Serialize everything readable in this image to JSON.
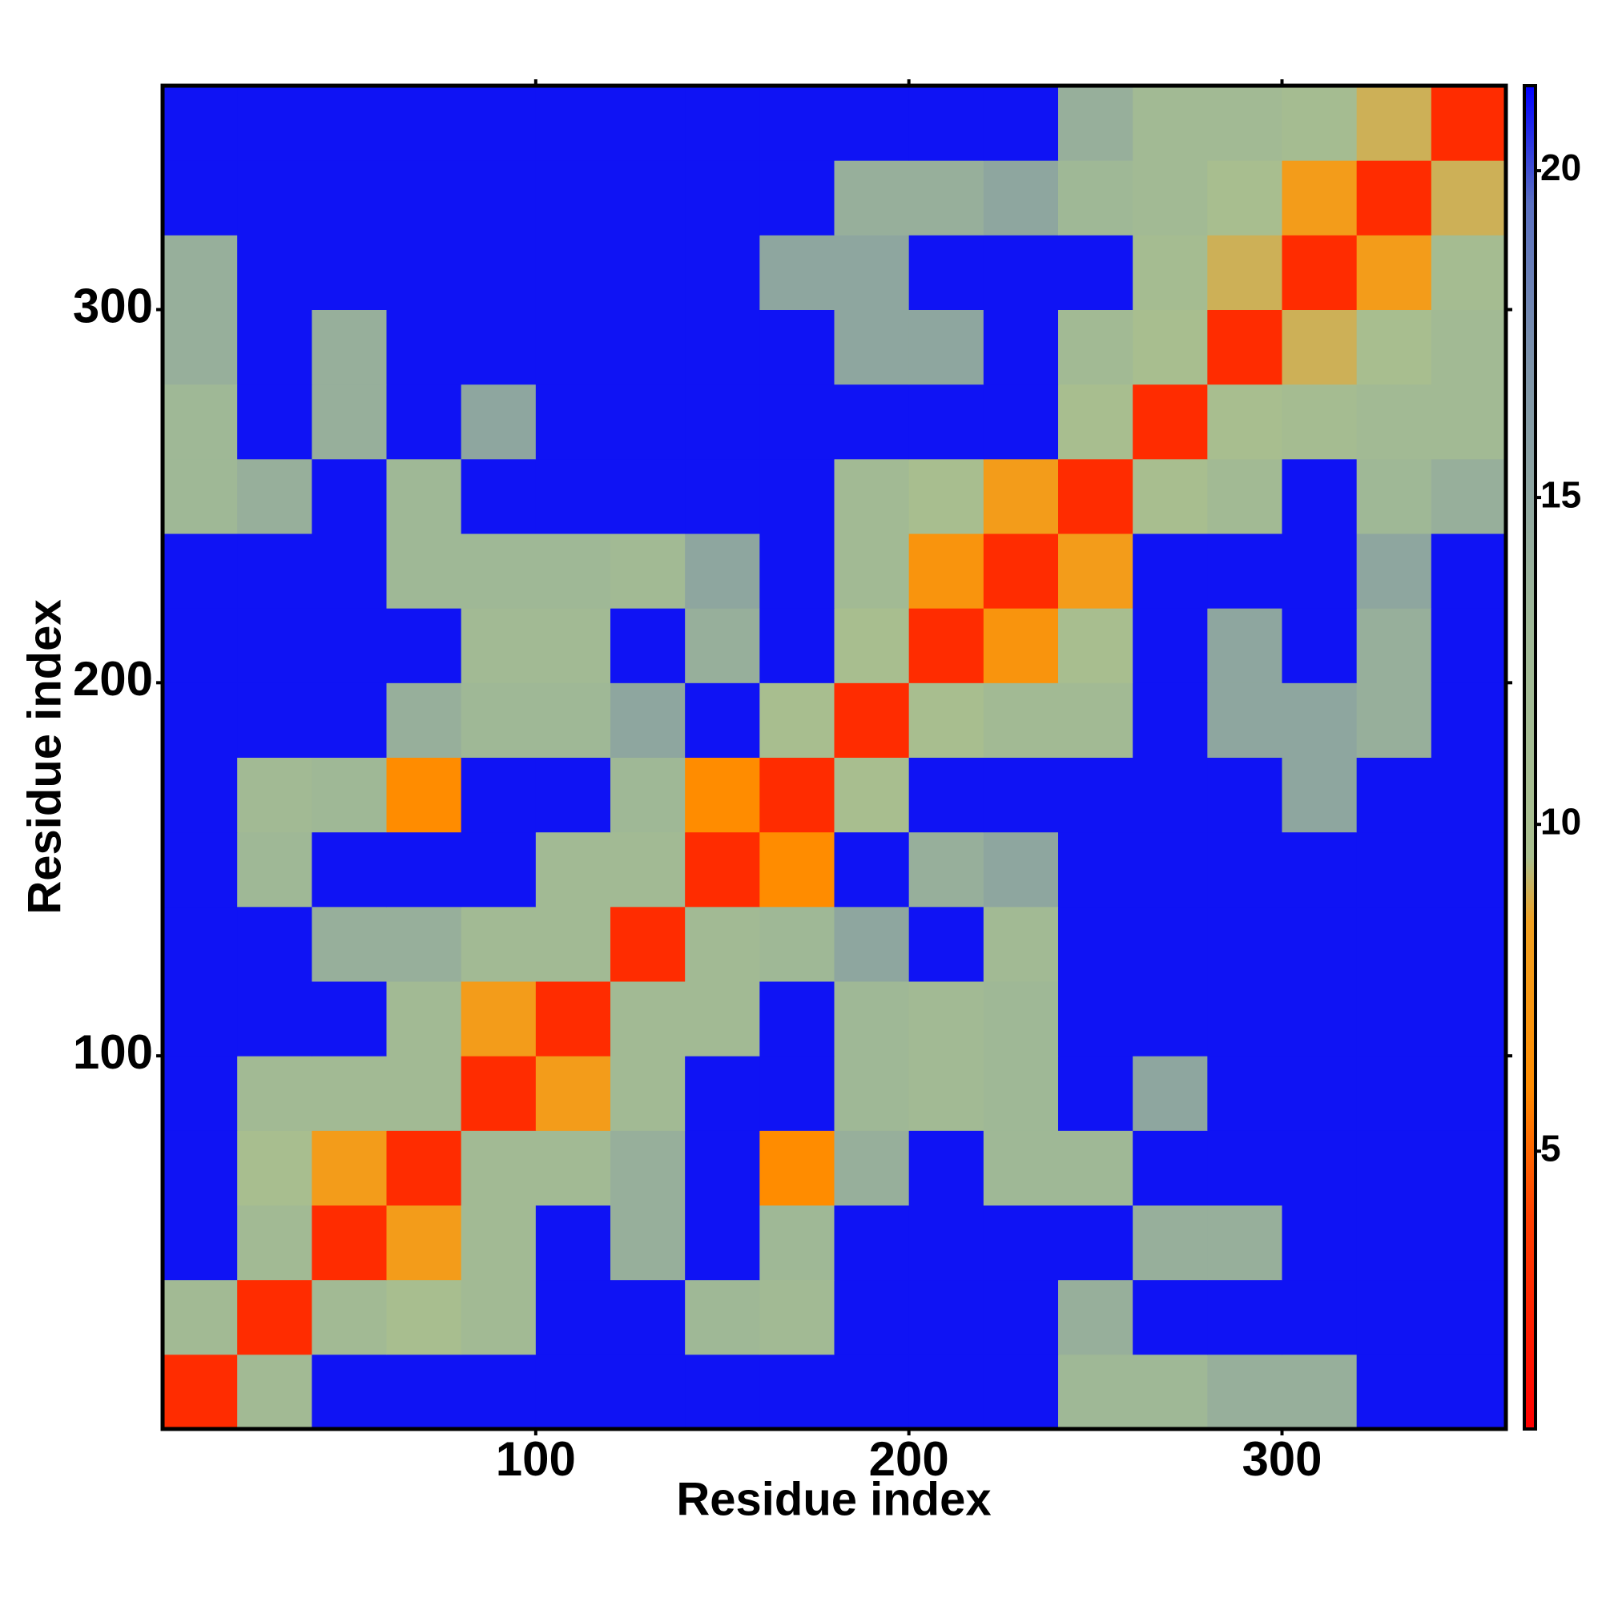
{
  "chart_data": {
    "type": "heatmap",
    "xlabel": "Residue index",
    "ylabel": "Residue index",
    "xlim": [
      0,
      360
    ],
    "ylim": [
      0,
      360
    ],
    "xticks": [
      100,
      200,
      300
    ],
    "yticks": [
      100,
      200,
      300
    ],
    "xbins": [
      0,
      20,
      40,
      60,
      80,
      100,
      120,
      140,
      160,
      180,
      200,
      220,
      240,
      260,
      280,
      300,
      320,
      340,
      360
    ],
    "ybins": [
      0,
      20,
      40,
      60,
      80,
      100,
      120,
      140,
      160,
      180,
      200,
      220,
      240,
      260,
      280,
      300,
      320,
      340,
      360
    ],
    "clim": [
      0.75,
      21.3
    ],
    "cticks": [
      5,
      10,
      15,
      20
    ],
    "colorscale": [
      [
        0.75,
        "#ff0000"
      ],
      [
        4,
        "#ff4000"
      ],
      [
        6,
        "#ff8c00"
      ],
      [
        8.5,
        "#f0a020"
      ],
      [
        9.5,
        "#a9bf8e"
      ],
      [
        13,
        "#9fb896"
      ],
      [
        17,
        "#7d93a8"
      ],
      [
        19.5,
        "#5a6fc0"
      ],
      [
        21.3,
        "#0000ff"
      ]
    ],
    "values": [
      [
        3,
        12,
        21,
        21,
        21,
        21,
        21,
        21,
        21,
        21,
        21,
        21,
        13,
        13,
        14,
        14,
        21,
        21
      ],
      [
        12,
        3,
        12,
        10,
        12,
        21,
        21,
        13,
        12,
        21,
        21,
        21,
        14,
        21,
        21,
        21,
        21,
        21
      ],
      [
        21,
        12,
        3,
        8,
        12,
        21,
        14,
        21,
        13,
        21,
        21,
        21,
        21,
        14,
        14,
        21,
        21,
        21
      ],
      [
        21,
        10,
        8,
        3,
        12,
        12,
        14,
        21,
        6,
        14,
        21,
        13,
        13,
        21,
        21,
        21,
        21,
        21
      ],
      [
        21,
        12,
        12,
        12,
        3,
        8,
        12,
        21,
        21,
        13,
        12,
        13,
        21,
        15,
        21,
        21,
        21,
        21
      ],
      [
        21,
        21,
        21,
        12,
        8,
        3,
        12,
        12,
        21,
        13,
        12,
        13,
        21,
        21,
        21,
        21,
        21,
        21
      ],
      [
        21,
        21,
        14,
        14,
        12,
        12,
        3,
        12,
        13,
        15,
        21,
        12,
        21,
        21,
        21,
        21,
        21,
        21
      ],
      [
        21,
        13,
        21,
        21,
        21,
        12,
        12,
        3,
        6,
        21,
        14,
        15,
        21,
        21,
        21,
        21,
        21,
        21
      ],
      [
        21,
        12,
        13,
        6,
        21,
        21,
        13,
        6,
        3,
        10,
        21,
        21,
        21,
        21,
        21,
        15,
        21,
        21
      ],
      [
        21,
        21,
        21,
        14,
        13,
        13,
        15,
        21,
        10,
        3,
        10,
        12,
        12,
        21,
        15,
        15,
        14,
        21
      ],
      [
        21,
        21,
        21,
        21,
        12,
        12,
        21,
        14,
        21,
        10,
        3,
        7,
        10,
        21,
        15,
        21,
        14,
        21
      ],
      [
        21,
        21,
        21,
        13,
        13,
        13,
        12,
        15,
        21,
        12,
        7,
        3,
        8,
        21,
        21,
        21,
        15,
        21
      ],
      [
        13,
        14,
        21,
        13,
        21,
        21,
        21,
        21,
        21,
        12,
        10,
        8,
        3,
        10,
        12,
        21,
        13,
        14
      ],
      [
        13,
        21,
        14,
        21,
        15,
        21,
        21,
        21,
        21,
        21,
        21,
        21,
        10,
        3,
        10,
        11,
        12,
        12
      ],
      [
        14,
        21,
        14,
        21,
        21,
        21,
        21,
        21,
        21,
        15,
        15,
        21,
        12,
        10,
        3,
        9,
        10,
        12
      ],
      [
        14,
        21,
        21,
        21,
        21,
        21,
        21,
        21,
        15,
        15,
        21,
        21,
        21,
        11,
        9,
        3,
        8,
        11
      ],
      [
        21,
        21,
        21,
        21,
        21,
        21,
        21,
        21,
        21,
        14,
        14,
        15,
        13,
        12,
        10,
        8,
        3,
        9
      ],
      [
        21,
        21,
        21,
        21,
        21,
        21,
        21,
        21,
        21,
        21,
        21,
        21,
        14,
        12,
        12,
        11,
        9,
        3
      ]
    ]
  }
}
